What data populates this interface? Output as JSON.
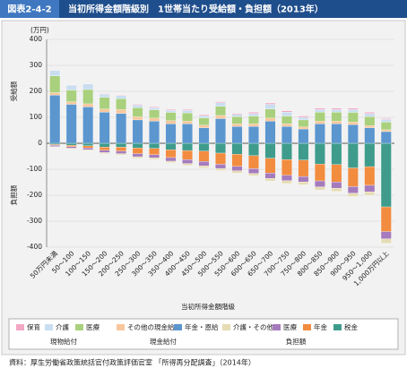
{
  "chart_data": {
    "type": "stacked-bar",
    "figure_label": "図表2-4-2",
    "title": "当初所得金額階級別　1世帯当たり受給額・負担額（2013年）",
    "y_unit": "(万円)",
    "y_label_upper": "受給額",
    "y_label_lower": "負担額",
    "x_label": "当初所得金額階級",
    "source": "資料：厚生労働省政策統括官付政策評価官室 「所得再分配調査」（2014年）",
    "ylim": [
      -400,
      400
    ],
    "yticks": [
      400,
      300,
      200,
      100,
      0,
      -100,
      -200,
      -300,
      -400
    ],
    "categories": [
      "50万円未満",
      "50～100",
      "100～150",
      "150～200",
      "200～250",
      "250～300",
      "300～350",
      "350～400",
      "400～450",
      "450～500",
      "500～550",
      "550～600",
      "600～650",
      "650～700",
      "700～750",
      "750～800",
      "800～850",
      "850～900",
      "900～950",
      "950～1,000",
      "1,000万円以上"
    ],
    "series": [
      {
        "name": "保育",
        "group": "現物給付",
        "color": "#f2a7c3",
        "values": [
          1,
          1,
          1,
          2,
          2,
          3,
          3,
          3,
          3,
          4,
          4,
          4,
          5,
          5,
          5,
          5,
          5,
          5,
          5,
          5,
          3
        ]
      },
      {
        "name": "介護",
        "group": "現物給付",
        "color": "#c9def0",
        "values": [
          20,
          18,
          22,
          12,
          12,
          10,
          8,
          8,
          10,
          8,
          14,
          8,
          10,
          18,
          15,
          10,
          10,
          10,
          11,
          12,
          10
        ]
      },
      {
        "name": "医療",
        "group": "現物給付",
        "color": "#a9d07c",
        "values": [
          65,
          45,
          55,
          45,
          42,
          35,
          32,
          32,
          32,
          28,
          35,
          28,
          30,
          35,
          30,
          27,
          35,
          35,
          37,
          35,
          30
        ]
      },
      {
        "name": "その他の現金給付",
        "group": "現金給付",
        "color": "#f8c79c",
        "values": [
          10,
          10,
          12,
          12,
          15,
          12,
          12,
          12,
          10,
          10,
          12,
          10,
          10,
          12,
          10,
          8,
          10,
          10,
          10,
          8,
          7
        ]
      },
      {
        "name": "年金・恩給",
        "group": "現金給付",
        "color": "#5b96cf",
        "values": [
          185,
          150,
          140,
          120,
          115,
          90,
          85,
          75,
          75,
          60,
          95,
          65,
          65,
          85,
          65,
          55,
          75,
          75,
          72,
          60,
          45
        ]
      },
      {
        "name": "介護・その他",
        "group": "負担額",
        "color": "#e6dcb4",
        "values": [
          -2,
          -3,
          -3,
          -4,
          -5,
          -6,
          -6,
          -6,
          -7,
          -8,
          -8,
          -9,
          -9,
          -10,
          -11,
          -11,
          -12,
          -12,
          -13,
          -13,
          -17
        ]
      },
      {
        "name": "医療",
        "group": "負担額",
        "color": "#a57bbd",
        "values": [
          -5,
          -6,
          -7,
          -9,
          -10,
          -12,
          -12,
          -14,
          -15,
          -17,
          -16,
          -17,
          -18,
          -20,
          -21,
          -21,
          -23,
          -24,
          -25,
          -25,
          -28
        ]
      },
      {
        "name": "年金",
        "group": "負担額",
        "color": "#f28c3f",
        "values": [
          -3,
          -5,
          -8,
          -12,
          -15,
          -22,
          -24,
          -30,
          -35,
          -40,
          -43,
          -47,
          -50,
          -57,
          -60,
          -63,
          -65,
          -67,
          -72,
          -72,
          -95
        ]
      },
      {
        "name": "税金",
        "group": "負担額",
        "color": "#3f9c8c",
        "values": [
          -5,
          -8,
          -10,
          -15,
          -15,
          -18,
          -20,
          -25,
          -28,
          -30,
          -38,
          -42,
          -48,
          -58,
          -63,
          -65,
          -80,
          -82,
          -95,
          -90,
          -245
        ]
      }
    ]
  }
}
